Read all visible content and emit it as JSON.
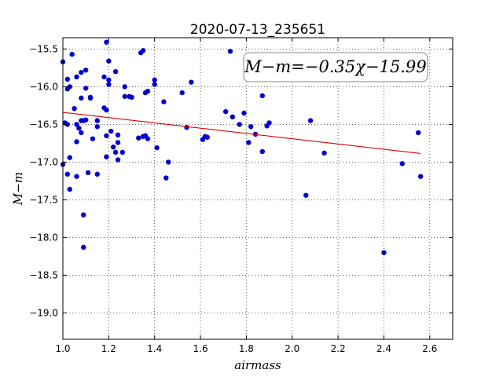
{
  "chart_data": {
    "type": "scatter",
    "title": "2020-07-13_235651",
    "xlabel": "airmass",
    "ylabel": "M−m",
    "xlim": [
      1.0,
      2.7
    ],
    "ylim": [
      -19.35,
      -15.35
    ],
    "y_inverted": true,
    "xticks": [
      1.0,
      1.2,
      1.4,
      1.6,
      1.8,
      2.0,
      2.2,
      2.4,
      2.6
    ],
    "xtick_labels": [
      "1.0",
      "1.2",
      "1.4",
      "1.6",
      "1.8",
      "2.0",
      "2.2",
      "2.4",
      "2.6"
    ],
    "yticks": [
      -15.5,
      -16.0,
      -16.5,
      -17.0,
      -17.5,
      -18.0,
      -18.5,
      -19.0
    ],
    "ytick_labels": [
      "−15.5",
      "−16.0",
      "−16.5",
      "−17.0",
      "−17.5",
      "−18.0",
      "−18.5",
      "−19.0"
    ],
    "grid": true,
    "annotation": "M−m=−0.35χ−15.99",
    "point_color": "#0000cc",
    "fit_color": "#dd0000",
    "fit": {
      "slope": -0.35,
      "intercept": -15.99,
      "x_range": [
        1.0,
        2.56
      ]
    },
    "points": {
      "x": [
        1.0,
        1.0,
        1.01,
        1.02,
        1.02,
        1.02,
        1.02,
        1.03,
        1.03,
        1.03,
        1.04,
        1.05,
        1.06,
        1.06,
        1.06,
        1.06,
        1.07,
        1.08,
        1.08,
        1.08,
        1.08,
        1.09,
        1.09,
        1.09,
        1.1,
        1.1,
        1.1,
        1.11,
        1.12,
        1.12,
        1.13,
        1.15,
        1.15,
        1.15,
        1.18,
        1.18,
        1.19,
        1.19,
        1.19,
        1.19,
        1.2,
        1.2,
        1.2,
        1.21,
        1.22,
        1.23,
        1.23,
        1.24,
        1.24,
        1.24,
        1.26,
        1.27,
        1.27,
        1.29,
        1.3,
        1.33,
        1.34,
        1.35,
        1.35,
        1.36,
        1.36,
        1.37,
        1.37,
        1.4,
        1.4,
        1.41,
        1.44,
        1.45,
        1.46,
        1.52,
        1.54,
        1.56,
        1.61,
        1.62,
        1.63,
        1.71,
        1.73,
        1.74,
        1.77,
        1.79,
        1.81,
        1.82,
        1.84,
        1.87,
        1.87,
        1.89,
        1.9,
        2.06,
        2.08,
        2.14,
        2.4,
        2.48,
        2.55,
        2.56
      ],
      "y": [
        -15.67,
        -17.03,
        -16.48,
        -15.9,
        -16.03,
        -16.5,
        -17.16,
        -16.94,
        -17.36,
        -16.0,
        -15.57,
        -16.29,
        -16.5,
        -15.87,
        -16.73,
        -17.19,
        -16.55,
        -15.81,
        -16.15,
        -16.61,
        -16.45,
        -17.7,
        -18.13,
        -16.45,
        -15.78,
        -16.02,
        -16.44,
        -17.14,
        -16.14,
        -16.15,
        -16.69,
        -16.45,
        -16.53,
        -17.16,
        -15.87,
        -16.28,
        -16.93,
        -16.65,
        -15.41,
        -16.31,
        -15.91,
        -15.97,
        -15.66,
        -16.59,
        -16.8,
        -15.8,
        -16.87,
        -16.64,
        -16.74,
        -16.97,
        -16.87,
        -16.0,
        -16.13,
        -16.13,
        -16.14,
        -16.68,
        -15.55,
        -15.52,
        -16.66,
        -16.08,
        -16.65,
        -16.69,
        -16.06,
        -15.91,
        -15.97,
        -16.81,
        -16.2,
        -17.21,
        -17.0,
        -16.08,
        -16.54,
        -15.94,
        -16.7,
        -16.66,
        -16.67,
        -16.33,
        -15.53,
        -16.4,
        -16.5,
        -16.35,
        -16.74,
        -16.53,
        -16.63,
        -16.86,
        -16.12,
        -16.52,
        -16.48,
        -17.44,
        -16.45,
        -16.88,
        -18.2,
        -17.02,
        -16.61,
        -17.19
      ]
    }
  }
}
